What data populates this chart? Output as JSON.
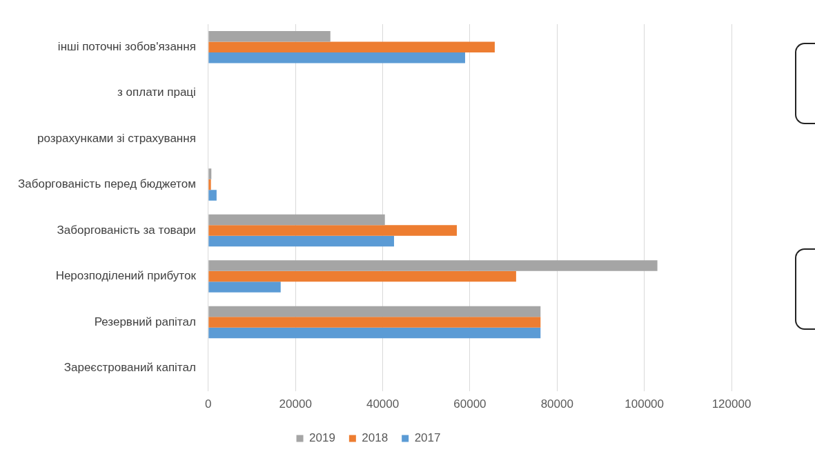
{
  "chart_data": {
    "type": "bar",
    "orientation": "horizontal",
    "categories": [
      "інші поточні зобов'язання",
      "з оплати праці",
      "розрахунками зі страхування",
      "Заборгованість перед бюджетом",
      "Заборгованість за товари",
      "Нерозподілений прибуток",
      "Резервний рапітал",
      "Зареєстрований капітал"
    ],
    "series": [
      {
        "name": "2019",
        "color": "#a5a5a5",
        "values": [
          28000,
          0,
          0,
          700,
          40500,
          103000,
          76200,
          0
        ]
      },
      {
        "name": "2018",
        "color": "#ed7d31",
        "values": [
          65700,
          0,
          0,
          600,
          57000,
          70600,
          76200,
          0
        ]
      },
      {
        "name": "2017",
        "color": "#5b9bd5",
        "values": [
          58900,
          0,
          0,
          1900,
          42600,
          16600,
          76200,
          0
        ]
      }
    ],
    "xlim": [
      0,
      120000
    ],
    "xticks": [
      0,
      20000,
      40000,
      60000,
      80000,
      100000,
      120000
    ],
    "grid": "x",
    "legend": "bottom"
  }
}
